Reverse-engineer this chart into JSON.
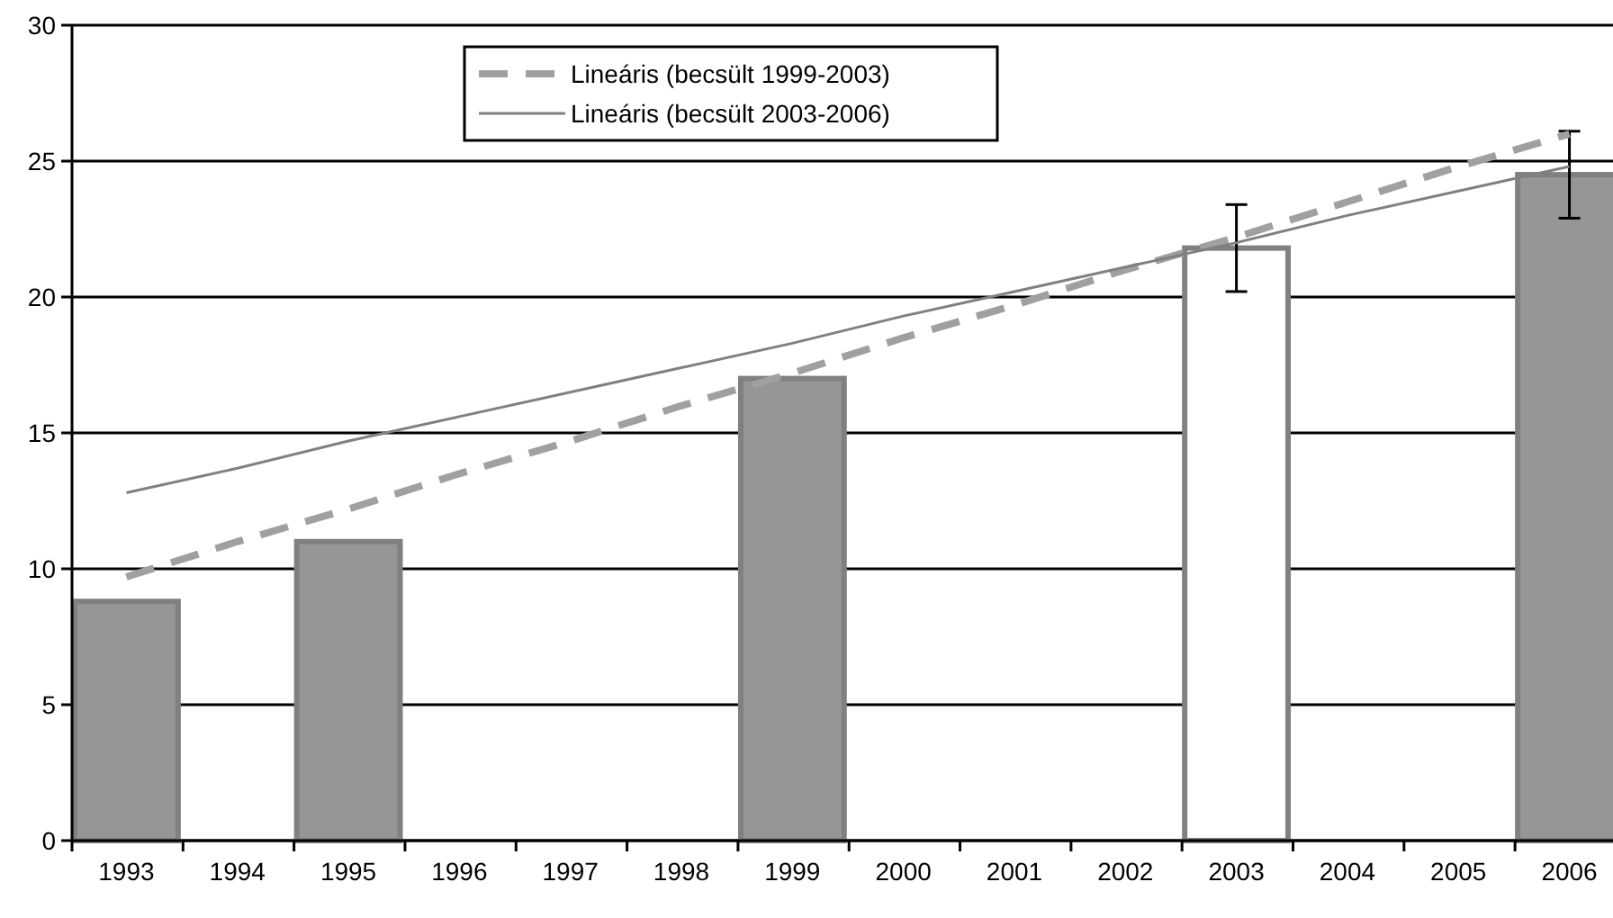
{
  "chart_data": {
    "type": "bar",
    "categories": [
      "1993",
      "1994",
      "1995",
      "1996",
      "1997",
      "1998",
      "1999",
      "2000",
      "2001",
      "2002",
      "2003",
      "2004",
      "2005",
      "2006"
    ],
    "series": [
      {
        "color": "#969696",
        "colors": [
          null,
          null,
          null,
          null,
          null,
          null,
          null,
          null,
          null,
          null,
          "#ffffff",
          null,
          null,
          null
        ],
        "values": [
          8.8,
          null,
          11,
          null,
          null,
          null,
          17,
          null,
          null,
          null,
          21.8,
          null,
          null,
          24.5
        ],
        "errors": [
          null,
          null,
          null,
          null,
          null,
          null,
          null,
          null,
          null,
          null,
          1.6,
          null,
          null,
          1.6
        ]
      },
      {
        "type": "line",
        "name": "Lineáris (becsült 1999-2003)",
        "color": "#a0a0a0",
        "line_style": "dashed",
        "values": [
          9.7,
          11.0,
          12.2,
          13.5,
          14.7,
          16.0,
          17.2,
          18.5,
          19.7,
          21.0,
          22.2,
          23.5,
          24.8,
          26.0
        ]
      },
      {
        "type": "line",
        "name": "Lineáris (becsült 2003-2006)",
        "color": "#808080",
        "line_style": "solid",
        "values": [
          12.8,
          13.7,
          14.7,
          15.6,
          16.5,
          17.4,
          18.3,
          19.3,
          20.2,
          21.1,
          22.0,
          23.0,
          23.9,
          24.8
        ]
      }
    ],
    "ylim": [
      0,
      30
    ],
    "yticks": [
      0,
      5,
      10,
      15,
      20,
      25,
      30
    ],
    "grid": "y",
    "legend": "top"
  }
}
